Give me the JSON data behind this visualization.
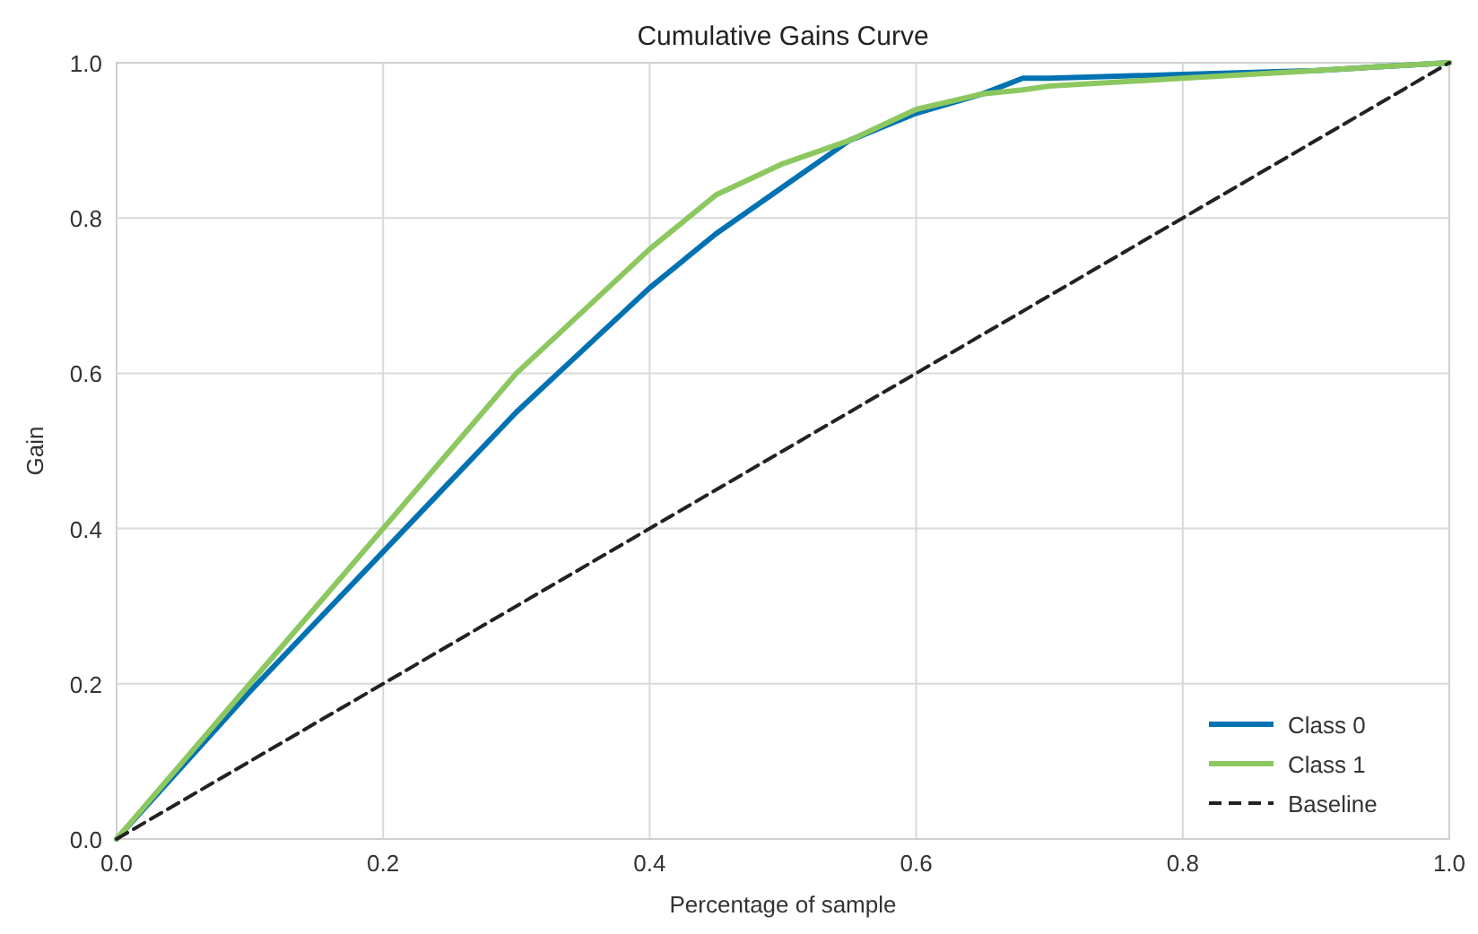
{
  "chart_data": {
    "type": "line",
    "title": "Cumulative Gains Curve",
    "xlabel": "Percentage of sample",
    "ylabel": "Gain",
    "x": [
      0,
      0.05,
      0.1,
      0.15,
      0.2,
      0.25,
      0.3,
      0.35,
      0.4,
      0.45,
      0.5,
      0.55,
      0.6,
      0.65,
      0.68,
      0.7,
      0.8,
      0.9,
      1
    ],
    "series": [
      {
        "name": "Class 0",
        "color": "#0072b2",
        "values": [
          0,
          0.095,
          0.19,
          0.28,
          0.37,
          0.46,
          0.55,
          0.63,
          0.71,
          0.78,
          0.84,
          0.9,
          0.935,
          0.96,
          0.98,
          0.98,
          0.985,
          0.99,
          1
        ]
      },
      {
        "name": "Class 1",
        "color": "#8cc85f",
        "values": [
          0,
          0.1,
          0.2,
          0.3,
          0.4,
          0.5,
          0.6,
          0.68,
          0.76,
          0.83,
          0.87,
          0.9,
          0.94,
          0.96,
          0.965,
          0.97,
          0.98,
          0.99,
          1
        ]
      },
      {
        "name": "Baseline",
        "color": "#222222",
        "line_style": "dashed",
        "x": [
          0,
          1
        ],
        "values": [
          0,
          1
        ]
      }
    ],
    "xlim": [
      0,
      1
    ],
    "ylim": [
      0,
      1
    ],
    "xticks": [
      {
        "value": 0,
        "label": "0.0"
      },
      0.2,
      0.4,
      0.6,
      0.8,
      {
        "value": 1,
        "label": "1.0"
      }
    ],
    "yticks": [
      {
        "value": 0,
        "label": "0.0"
      },
      0.2,
      0.4,
      0.6,
      0.8,
      {
        "value": 1,
        "label": "1.0"
      }
    ],
    "grid": true,
    "legend": "bottom right"
  }
}
